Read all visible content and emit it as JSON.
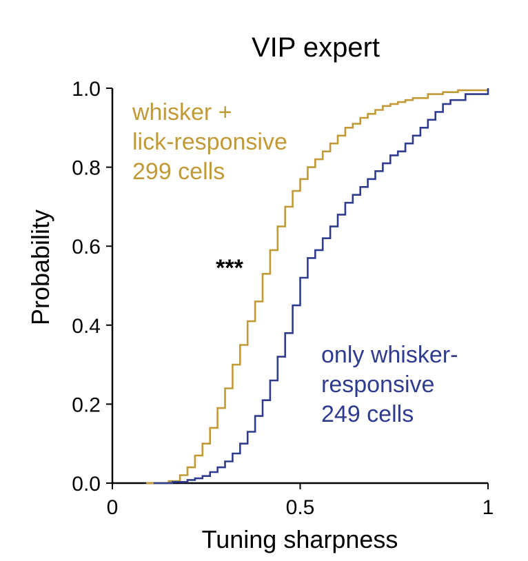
{
  "chart_data": {
    "type": "line",
    "title": "VIP expert",
    "xlabel": "Tuning sharpness",
    "ylabel": "Probability",
    "xlim": [
      0,
      1
    ],
    "ylim": [
      0,
      1
    ],
    "x_ticks": [
      "0",
      "0.5",
      "1"
    ],
    "y_ticks": [
      "0.0",
      "0.2",
      "0.4",
      "0.6",
      "0.8",
      "1.0"
    ],
    "grid": false,
    "significance": "***",
    "series": [
      {
        "name_lines": [
          "whisker +",
          "lick-responsive",
          "299 cells"
        ],
        "color": "#C19A36",
        "x": [
          0.09,
          0.15,
          0.18,
          0.2,
          0.22,
          0.24,
          0.26,
          0.28,
          0.3,
          0.32,
          0.34,
          0.36,
          0.38,
          0.4,
          0.42,
          0.44,
          0.46,
          0.48,
          0.5,
          0.52,
          0.54,
          0.56,
          0.58,
          0.6,
          0.62,
          0.64,
          0.66,
          0.68,
          0.7,
          0.72,
          0.74,
          0.76,
          0.78,
          0.8,
          0.84,
          0.88,
          0.92,
          1.0
        ],
        "y": [
          0.0,
          0.005,
          0.02,
          0.04,
          0.07,
          0.1,
          0.14,
          0.19,
          0.24,
          0.3,
          0.35,
          0.41,
          0.46,
          0.53,
          0.59,
          0.65,
          0.7,
          0.74,
          0.77,
          0.8,
          0.82,
          0.84,
          0.86,
          0.88,
          0.9,
          0.91,
          0.925,
          0.935,
          0.945,
          0.955,
          0.96,
          0.965,
          0.97,
          0.975,
          0.985,
          0.99,
          0.995,
          1.0
        ]
      },
      {
        "name_lines": [
          "only whisker-",
          "responsive",
          "249 cells"
        ],
        "color": "#2E3B8F",
        "x": [
          0.11,
          0.16,
          0.2,
          0.22,
          0.24,
          0.26,
          0.28,
          0.3,
          0.32,
          0.34,
          0.36,
          0.38,
          0.4,
          0.42,
          0.44,
          0.46,
          0.48,
          0.5,
          0.52,
          0.54,
          0.56,
          0.58,
          0.6,
          0.62,
          0.64,
          0.66,
          0.68,
          0.7,
          0.72,
          0.74,
          0.76,
          0.78,
          0.8,
          0.82,
          0.84,
          0.86,
          0.88,
          0.9,
          0.94,
          1.0
        ],
        "y": [
          0.0,
          0.003,
          0.008,
          0.012,
          0.018,
          0.028,
          0.04,
          0.055,
          0.075,
          0.1,
          0.13,
          0.17,
          0.21,
          0.26,
          0.32,
          0.38,
          0.45,
          0.52,
          0.57,
          0.59,
          0.62,
          0.65,
          0.68,
          0.71,
          0.73,
          0.75,
          0.77,
          0.79,
          0.81,
          0.83,
          0.84,
          0.86,
          0.88,
          0.9,
          0.92,
          0.94,
          0.96,
          0.97,
          0.985,
          1.0
        ]
      }
    ]
  }
}
